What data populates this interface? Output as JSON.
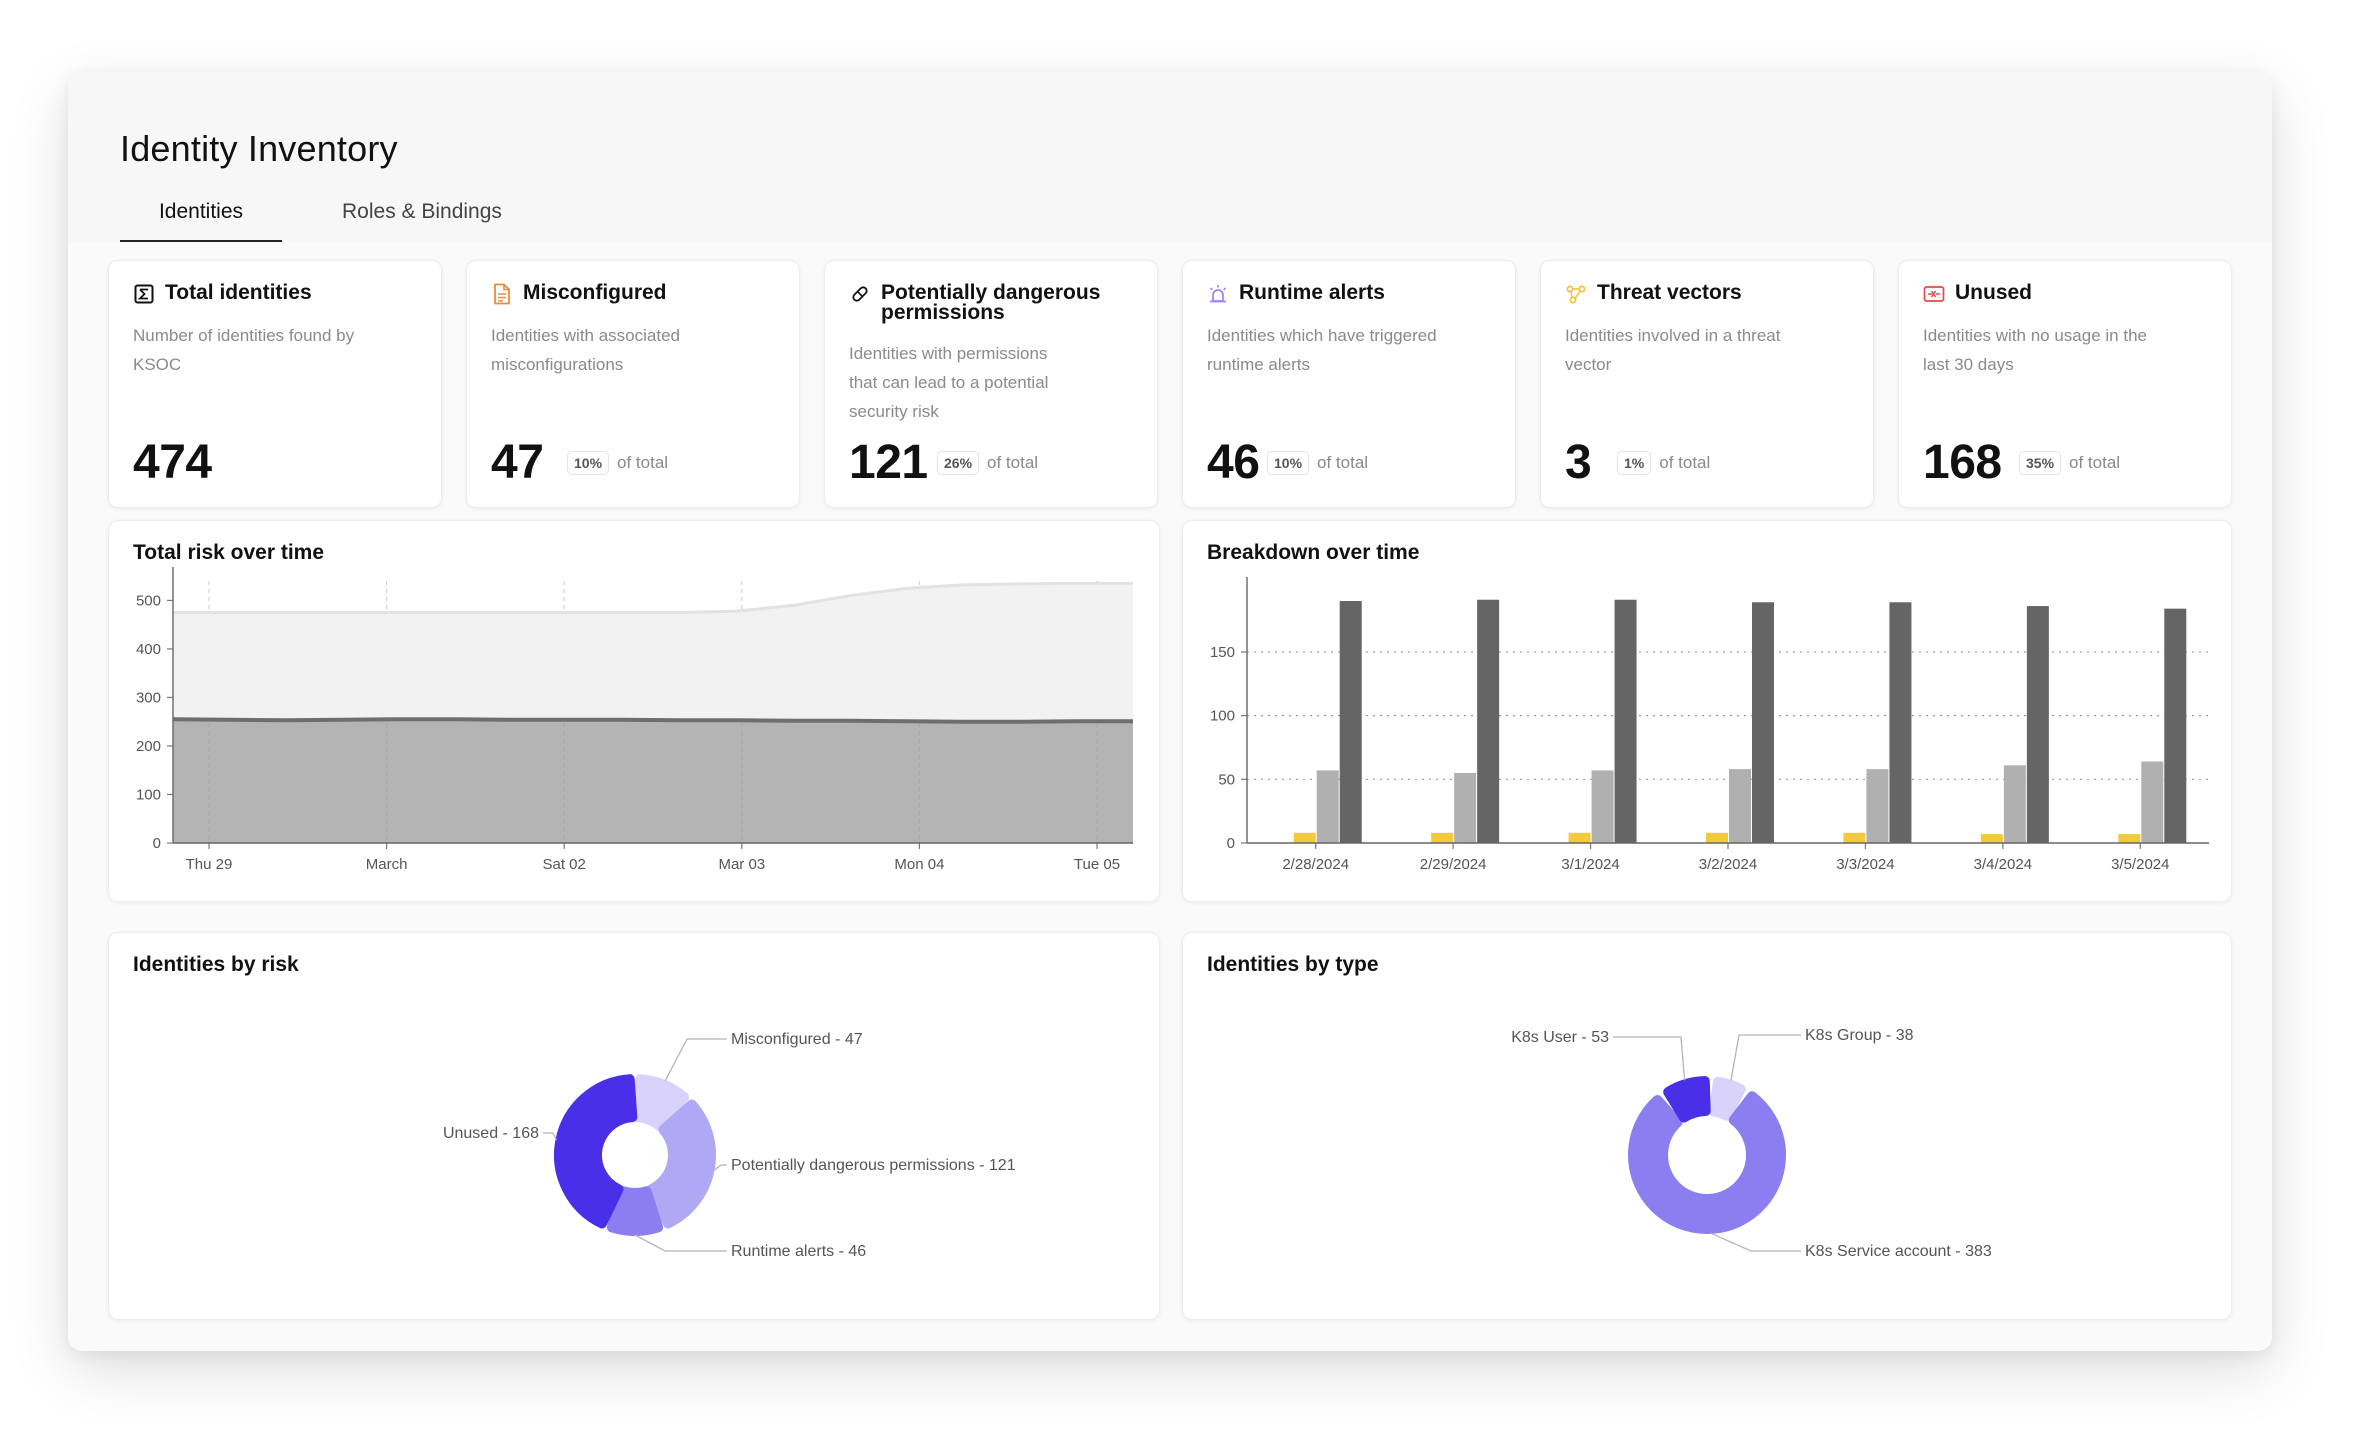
{
  "app": {
    "title": "Identity Inventory"
  },
  "tabs": [
    {
      "label": "Identities",
      "active": true
    },
    {
      "label": "Roles & Bindings",
      "active": false
    }
  ],
  "kpis": [
    {
      "icon": "sigma-icon",
      "title": "Total identities",
      "description": "Number of identities found by KSOC",
      "value": "474",
      "percent": "",
      "suffix": ""
    },
    {
      "icon": "document-icon",
      "title": "Misconfigured",
      "description": "Identities with associated misconfigurations",
      "value": "47",
      "percent": "10%",
      "suffix": "of total"
    },
    {
      "icon": "pill-icon",
      "title": "Potentially dangerous permissions",
      "description": "Identities with permissions that can lead to a potential security risk",
      "value": "121",
      "percent": "26%",
      "suffix": "of total"
    },
    {
      "icon": "alarm-icon",
      "title": "Runtime alerts",
      "description": "Identities which have triggered runtime alerts",
      "value": "46",
      "percent": "10%",
      "suffix": "of total"
    },
    {
      "icon": "nodes-icon",
      "title": "Threat vectors",
      "description": "Identities involved in a threat vector",
      "value": "3",
      "percent": "1%",
      "suffix": "of total"
    },
    {
      "icon": "unused-icon",
      "title": "Unused",
      "description": "Identities with no usage in the last 30 days",
      "value": "168",
      "percent": "35%",
      "suffix": "of total"
    }
  ],
  "colors": {
    "area_total": "#f2f2f2",
    "area_total_line": "#e2e2e2",
    "area_risk": "#b4b4b4",
    "area_risk_line": "#6e6e6e",
    "bar_yellow": "#f1cb3c",
    "bar_light": "#b0b0b0",
    "bar_dark": "#656565",
    "donut_dark": "#4a2fe8",
    "donut_light": "#d9d3fb",
    "donut_mid": "#b0a7f5",
    "donut_medium": "#8b7ef0"
  },
  "chart_data": [
    {
      "id": "total-risk",
      "type": "area",
      "title": "Total risk over time",
      "x_labels": [
        "Thu 29",
        "March",
        "Sat 02",
        "Mar 03",
        "Mon 04",
        "Tue 05"
      ],
      "y_ticks": [
        0,
        100,
        200,
        300,
        400,
        500
      ],
      "ylim": [
        0,
        540
      ],
      "grid": "vertical-dashed",
      "series": [
        {
          "values": [
            475,
            475,
            475,
            475,
            475,
            475,
            475,
            475,
            475,
            475,
            478,
            490,
            510,
            525,
            532,
            534,
            535,
            535
          ]
        },
        {
          "values": [
            255,
            254,
            253,
            254,
            255,
            255,
            254,
            254,
            254,
            253,
            253,
            252,
            252,
            251,
            250,
            250,
            251,
            251
          ]
        }
      ]
    },
    {
      "id": "breakdown",
      "type": "bar",
      "title": "Breakdown over time",
      "categories": [
        "2/28/2024",
        "2/29/2024",
        "3/1/2024",
        "3/2/2024",
        "3/3/2024",
        "3/4/2024",
        "3/5/2024"
      ],
      "y_ticks": [
        0,
        50,
        100,
        150
      ],
      "ylim": [
        0,
        190
      ],
      "grid": "horizontal-dotted",
      "series": [
        {
          "values": [
            8,
            8,
            8,
            8,
            8,
            7,
            7
          ]
        },
        {
          "values": [
            57,
            55,
            57,
            58,
            58,
            61,
            64
          ]
        },
        {
          "values": [
            190,
            191,
            191,
            189,
            189,
            186,
            184
          ]
        }
      ]
    },
    {
      "id": "by-risk",
      "type": "pie",
      "title": "Identities by risk",
      "slices": [
        {
          "label": "Misconfigured - 47",
          "value": 47
        },
        {
          "label": "Potentially dangerous permissions - 121",
          "value": 121
        },
        {
          "label": "Runtime alerts - 46",
          "value": 46
        },
        {
          "label": "Unused - 168",
          "value": 168
        }
      ]
    },
    {
      "id": "by-type",
      "type": "pie",
      "title": "Identities by type",
      "slices": [
        {
          "label": "K8s Group - 38",
          "value": 38
        },
        {
          "label": "K8s Service account - 383",
          "value": 383
        },
        {
          "label": "K8s User - 53",
          "value": 53
        }
      ]
    }
  ]
}
